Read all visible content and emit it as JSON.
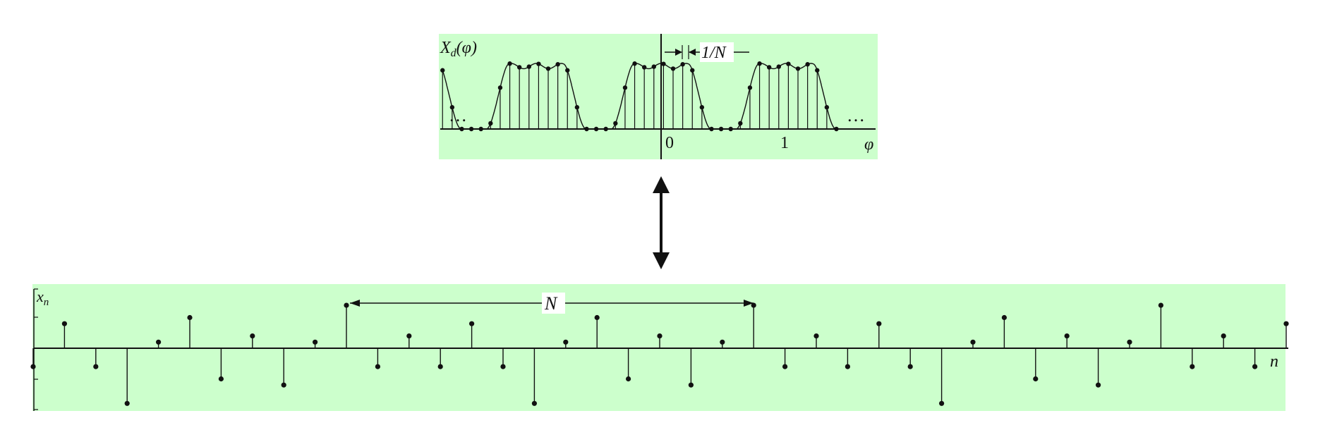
{
  "spectrum_panel": {
    "y_label": "X_d(φ)",
    "y_label_main": "X",
    "y_label_sub": "d",
    "y_label_arg": "(φ)",
    "x_label": "φ",
    "spacing_label": "1/N",
    "tick_labels": [
      "0",
      "1"
    ],
    "ellipsis_left": "…",
    "ellipsis_right": "…",
    "background": "#ccffcc"
  },
  "sequence_panel": {
    "y_label": "x_n",
    "y_label_main": "x",
    "y_label_sub": "n",
    "x_label": "n",
    "period_label": "N",
    "background": "#ccffcc"
  },
  "connector": {
    "icon": "double-arrow-icon"
  },
  "chart_data": [
    {
      "type": "stem",
      "name": "spectrum",
      "x_domain": [
        -1.75,
        1.45
      ],
      "samples_per_unit": 13,
      "period": 1,
      "pulse_width": 0.62,
      "xticks": [
        0,
        1
      ]
    },
    {
      "type": "stem",
      "name": "sequence",
      "period_N": 13,
      "values": [
        -0.3,
        0.4,
        -0.3,
        -0.9,
        0.1,
        0.5,
        -0.5,
        0.2,
        -0.6,
        0.1,
        0.7,
        -0.3,
        0.2,
        -0.3,
        0.4,
        -0.3,
        -0.9,
        0.1,
        0.5,
        -0.5,
        0.2,
        -0.6,
        0.1,
        0.7,
        -0.3,
        0.2,
        -0.3,
        0.4,
        -0.3,
        -0.9,
        0.1,
        0.5,
        -0.5,
        0.2,
        -0.6,
        0.1,
        0.7,
        -0.3,
        0.2,
        -0.3,
        0.4
      ]
    }
  ]
}
